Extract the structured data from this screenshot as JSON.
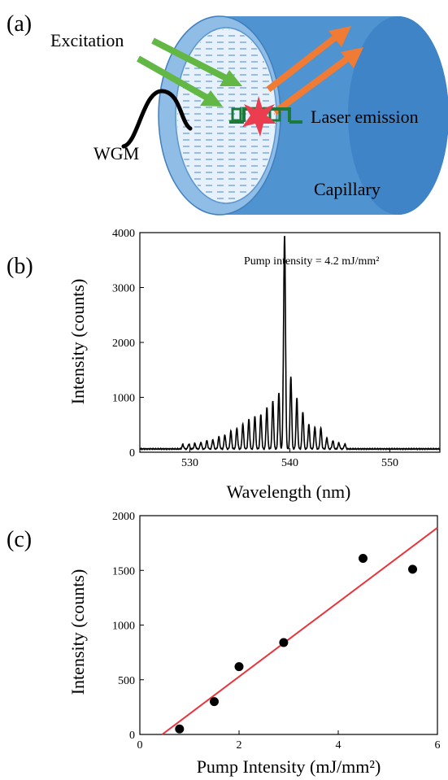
{
  "panel_a": {
    "label": "(a)",
    "excitation_label": "Excitation",
    "laser_label": "Laser emission",
    "wgm_label": "WGM",
    "capillary_label": "Capillary",
    "colors": {
      "capillary": "#4f93d0",
      "capillary_face": "#a9cdee",
      "excitation": "#62b745",
      "emission": "#f07b34",
      "star": "#ea3d4f",
      "bracket": "#1b7a3a"
    }
  },
  "chart_data": [
    {
      "panel_label": "(b)",
      "type": "line",
      "xlabel": "Wavelength (nm)",
      "ylabel": "Intensity (counts)",
      "annotation": "Pump intensity = 4.2 mJ/mm²",
      "xlim": [
        525,
        555
      ],
      "ylim": [
        0,
        4000
      ],
      "xticks": [
        530,
        540,
        550
      ],
      "yticks": [
        0,
        1000,
        2000,
        3000,
        4000
      ],
      "baseline": 60,
      "peak_spacing": 0.6,
      "peaks": [
        [
          529.3,
          80
        ],
        [
          529.9,
          90
        ],
        [
          530.5,
          100
        ],
        [
          531.1,
          120
        ],
        [
          531.7,
          150
        ],
        [
          532.3,
          170
        ],
        [
          532.9,
          220
        ],
        [
          533.5,
          260
        ],
        [
          534.1,
          320
        ],
        [
          534.7,
          380
        ],
        [
          535.3,
          450
        ],
        [
          535.9,
          540
        ],
        [
          536.5,
          600
        ],
        [
          537.1,
          620
        ],
        [
          537.7,
          760
        ],
        [
          538.3,
          870
        ],
        [
          538.9,
          1020
        ],
        [
          539.5,
          3000
        ],
        [
          539.4,
          1600
        ],
        [
          540.1,
          1320
        ],
        [
          540.7,
          920
        ],
        [
          541.3,
          680
        ],
        [
          541.9,
          440
        ],
        [
          542.5,
          400
        ],
        [
          543.1,
          380
        ],
        [
          543.7,
          200
        ],
        [
          544.3,
          150
        ],
        [
          544.9,
          110
        ],
        [
          545.5,
          90
        ]
      ],
      "color": "#000000"
    },
    {
      "panel_label": "(c)",
      "type": "scatter",
      "xlabel": "Pump Intensity (mJ/mm²)",
      "ylabel": "Intensity (counts)",
      "xlim": [
        0,
        6
      ],
      "ylim": [
        0,
        2000
      ],
      "xticks": [
        0,
        2,
        4,
        6
      ],
      "yticks": [
        0,
        500,
        1000,
        1500,
        2000
      ],
      "points": [
        {
          "x": 0.8,
          "y": 50
        },
        {
          "x": 1.5,
          "y": 300
        },
        {
          "x": 2.0,
          "y": 620
        },
        {
          "x": 2.9,
          "y": 840
        },
        {
          "x": 4.5,
          "y": 1610
        },
        {
          "x": 5.5,
          "y": 1510
        }
      ],
      "fit_line": {
        "x": [
          0.45,
          6.0
        ],
        "y": [
          0,
          1890
        ]
      },
      "marker_color": "#000000",
      "fit_color": "#e8343d"
    }
  ]
}
